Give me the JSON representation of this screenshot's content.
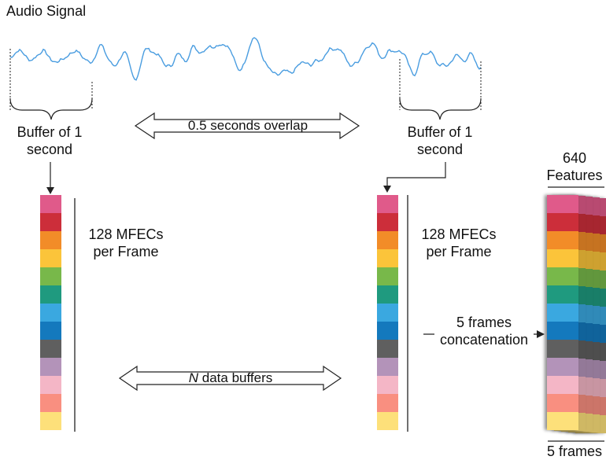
{
  "title": "Audio Signal",
  "buffer_left": "Buffer of 1 second",
  "buffer_right": "Buffer of 1 second",
  "overlap_label": "0.5 seconds overlap",
  "mfec_left": "128 MFECs per Frame",
  "mfec_right": "128 MFECs per Frame",
  "n_buffers": {
    "italic": "N",
    "rest": " data buffers"
  },
  "concat_label": "5 frames concatenation",
  "features_label": "640 Features",
  "frames_label": "5 frames",
  "colors": {
    "signal": "#4a9de0",
    "frame_cells": [
      "#e05a8a",
      "#cc2e3a",
      "#f28c28",
      "#fbc43a",
      "#78b84a",
      "#1f9a7f",
      "#3aa8e0",
      "#1479bd",
      "#5f5f5f",
      "#b393b9",
      "#f4b6c6",
      "#f98f80",
      "#fde07a"
    ]
  }
}
